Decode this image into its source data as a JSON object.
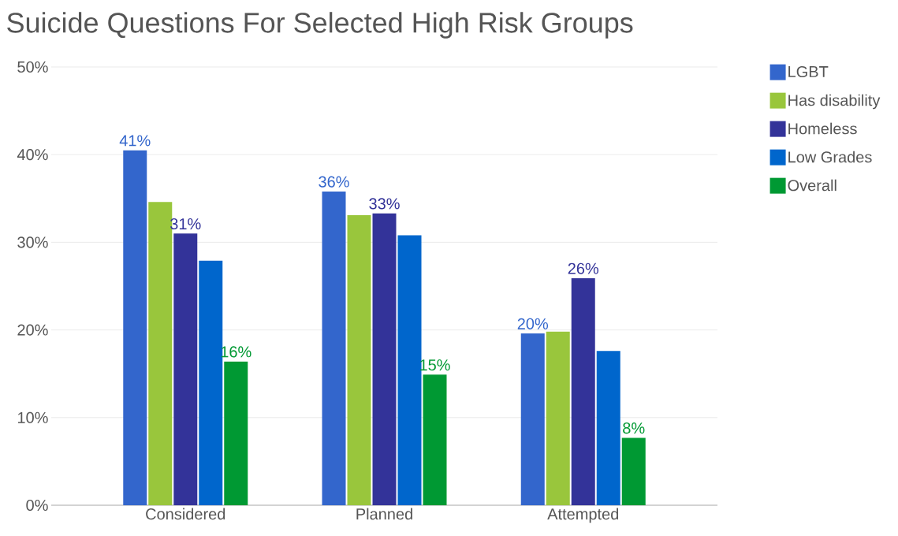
{
  "chart_data": {
    "type": "bar",
    "title": "Suicide Questions For Selected High Risk Groups",
    "categories": [
      "Considered",
      "Planned",
      "Attempted"
    ],
    "series": [
      {
        "name": "LGBT",
        "color": "#3366cc",
        "values": [
          40.5,
          35.8,
          19.6
        ],
        "value_labels": [
          "41%",
          "36%",
          "20%"
        ]
      },
      {
        "name": "Has disability",
        "color": "#99c63c",
        "values": [
          34.6,
          33.1,
          19.8
        ]
      },
      {
        "name": "Homeless",
        "color": "#333399",
        "values": [
          31.0,
          33.3,
          25.9
        ],
        "value_labels": [
          "31%",
          "33%",
          "26%"
        ]
      },
      {
        "name": "Low Grades",
        "color": "#0066cc",
        "values": [
          27.9,
          30.8,
          17.6
        ]
      },
      {
        "name": "Overall",
        "color": "#009933",
        "values": [
          16.4,
          14.9,
          7.7
        ],
        "value_labels": [
          "16%",
          "15%",
          "8%"
        ]
      }
    ],
    "ylim": [
      0,
      50
    ],
    "yticks": [
      {
        "value": 0,
        "label": "0%"
      },
      {
        "value": 10,
        "label": "10%"
      },
      {
        "value": 20,
        "label": "20%"
      },
      {
        "value": 30,
        "label": "30%"
      },
      {
        "value": 40,
        "label": "40%"
      },
      {
        "value": 50,
        "label": "50%"
      }
    ],
    "grid": "y",
    "legend": "right"
  }
}
